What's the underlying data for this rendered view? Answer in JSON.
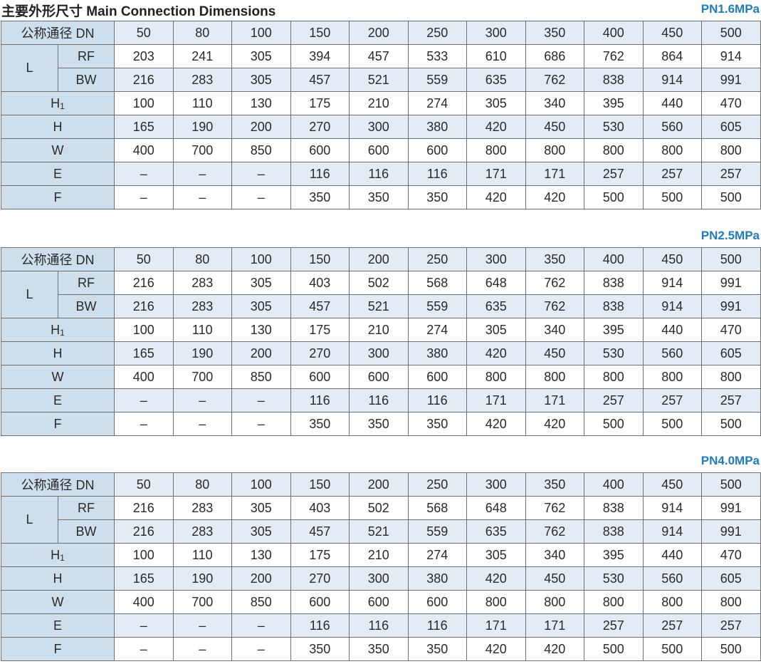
{
  "title": "主要外形尺寸 Main Connection Dimensions",
  "colors": {
    "accent": "#1e7cc2",
    "label_bg": "#cddeec",
    "shade_bg": "#e3ecf5"
  },
  "tables": [
    {
      "pressure": "PN1.6MPa",
      "header_label": "公称通径 DN",
      "dn": [
        "50",
        "80",
        "100",
        "150",
        "200",
        "250",
        "300",
        "350",
        "400",
        "450",
        "500"
      ],
      "l_label": "L",
      "rows": [
        {
          "label": "RF",
          "values": [
            "203",
            "241",
            "305",
            "394",
            "457",
            "533",
            "610",
            "686",
            "762",
            "864",
            "914"
          ]
        },
        {
          "label": "BW",
          "values": [
            "216",
            "283",
            "305",
            "457",
            "521",
            "559",
            "635",
            "762",
            "838",
            "914",
            "991"
          ]
        },
        {
          "label": "H",
          "sub": "1",
          "values": [
            "100",
            "110",
            "130",
            "175",
            "210",
            "274",
            "305",
            "340",
            "395",
            "440",
            "470"
          ]
        },
        {
          "label": "H",
          "values": [
            "165",
            "190",
            "200",
            "270",
            "300",
            "380",
            "420",
            "450",
            "530",
            "560",
            "605"
          ]
        },
        {
          "label": "W",
          "values": [
            "400",
            "700",
            "850",
            "600",
            "600",
            "600",
            "800",
            "800",
            "800",
            "800",
            "800"
          ]
        },
        {
          "label": "E",
          "values": [
            "–",
            "–",
            "–",
            "116",
            "116",
            "116",
            "171",
            "171",
            "257",
            "257",
            "257"
          ]
        },
        {
          "label": "F",
          "values": [
            "–",
            "–",
            "–",
            "350",
            "350",
            "350",
            "420",
            "420",
            "500",
            "500",
            "500"
          ]
        }
      ]
    },
    {
      "pressure": "PN2.5MPa",
      "header_label": "公称通径 DN",
      "dn": [
        "50",
        "80",
        "100",
        "150",
        "200",
        "250",
        "300",
        "350",
        "400",
        "450",
        "500"
      ],
      "l_label": "L",
      "rows": [
        {
          "label": "RF",
          "values": [
            "216",
            "283",
            "305",
            "403",
            "502",
            "568",
            "648",
            "762",
            "838",
            "914",
            "991"
          ]
        },
        {
          "label": "BW",
          "values": [
            "216",
            "283",
            "305",
            "457",
            "521",
            "559",
            "635",
            "762",
            "838",
            "914",
            "991"
          ]
        },
        {
          "label": "H",
          "sub": "1",
          "values": [
            "100",
            "110",
            "130",
            "175",
            "210",
            "274",
            "305",
            "340",
            "395",
            "440",
            "470"
          ]
        },
        {
          "label": "H",
          "values": [
            "165",
            "190",
            "200",
            "270",
            "300",
            "380",
            "420",
            "450",
            "530",
            "560",
            "605"
          ]
        },
        {
          "label": "W",
          "values": [
            "400",
            "700",
            "850",
            "600",
            "600",
            "600",
            "800",
            "800",
            "800",
            "800",
            "800"
          ]
        },
        {
          "label": "E",
          "values": [
            "–",
            "–",
            "–",
            "116",
            "116",
            "116",
            "171",
            "171",
            "257",
            "257",
            "257"
          ]
        },
        {
          "label": "F",
          "values": [
            "–",
            "–",
            "–",
            "350",
            "350",
            "350",
            "420",
            "420",
            "500",
            "500",
            "500"
          ]
        }
      ]
    },
    {
      "pressure": "PN4.0MPa",
      "header_label": "公称通径 DN",
      "dn": [
        "50",
        "80",
        "100",
        "150",
        "200",
        "250",
        "300",
        "350",
        "400",
        "450",
        "500"
      ],
      "l_label": "L",
      "rows": [
        {
          "label": "RF",
          "values": [
            "216",
            "283",
            "305",
            "403",
            "502",
            "568",
            "648",
            "762",
            "838",
            "914",
            "991"
          ]
        },
        {
          "label": "BW",
          "values": [
            "216",
            "283",
            "305",
            "457",
            "521",
            "559",
            "635",
            "762",
            "838",
            "914",
            "991"
          ]
        },
        {
          "label": "H",
          "sub": "1",
          "values": [
            "100",
            "110",
            "130",
            "175",
            "210",
            "274",
            "305",
            "340",
            "395",
            "440",
            "470"
          ]
        },
        {
          "label": "H",
          "values": [
            "165",
            "190",
            "200",
            "270",
            "300",
            "380",
            "420",
            "450",
            "530",
            "560",
            "605"
          ]
        },
        {
          "label": "W",
          "values": [
            "400",
            "700",
            "850",
            "600",
            "600",
            "600",
            "800",
            "800",
            "800",
            "800",
            "800"
          ]
        },
        {
          "label": "E",
          "values": [
            "–",
            "–",
            "–",
            "116",
            "116",
            "116",
            "171",
            "171",
            "257",
            "257",
            "257"
          ]
        },
        {
          "label": "F",
          "values": [
            "–",
            "–",
            "–",
            "350",
            "350",
            "350",
            "420",
            "420",
            "500",
            "500",
            "500"
          ]
        }
      ]
    }
  ]
}
